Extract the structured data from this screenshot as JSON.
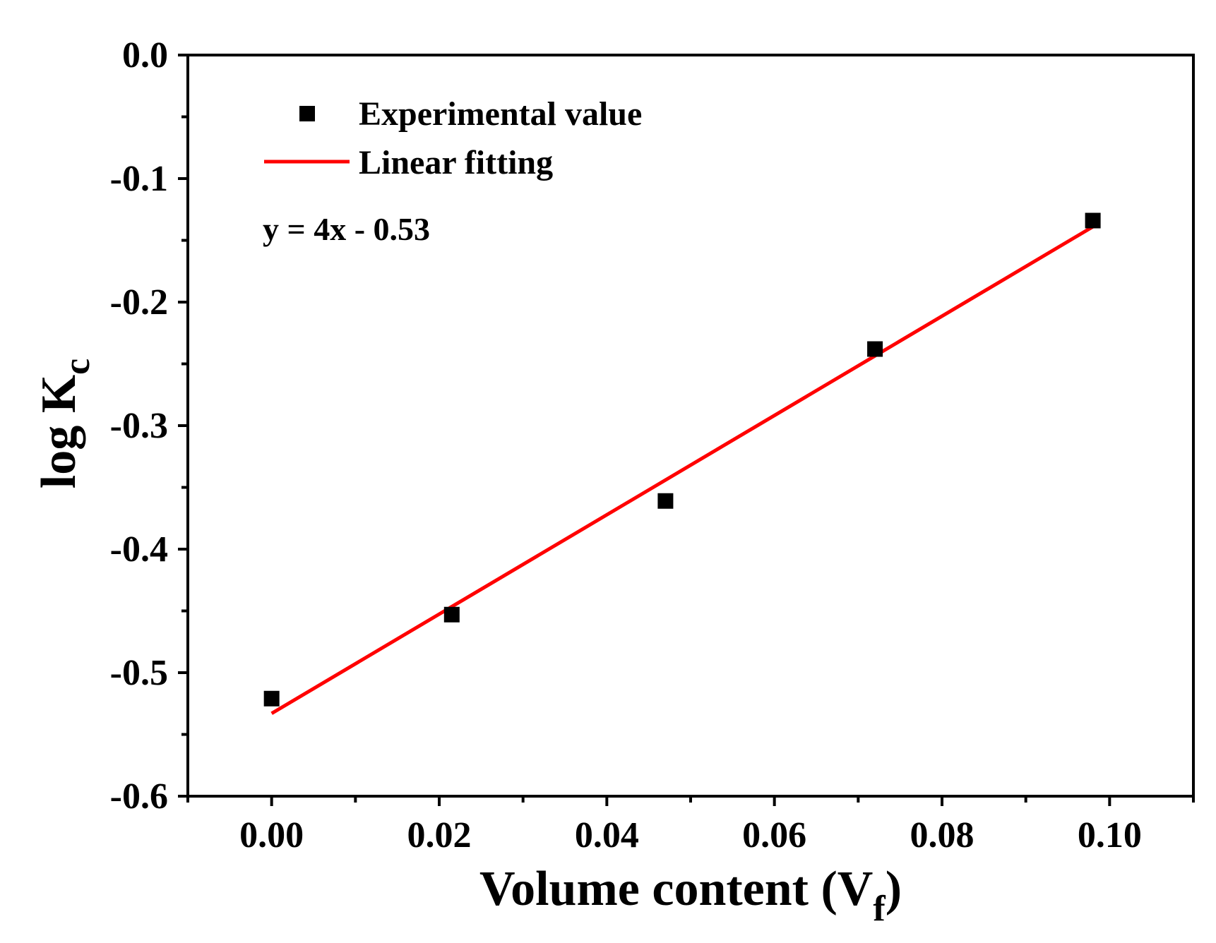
{
  "chart_data": {
    "type": "scatter",
    "title": "",
    "xlabel": {
      "main": "Volume content (V",
      "sub": "f",
      "close": ")"
    },
    "ylabel": {
      "main": "log K",
      "sub": "c"
    },
    "xlim": [
      -0.01,
      0.11
    ],
    "ylim": [
      -0.6,
      0.0
    ],
    "x_major_ticks": [
      0.0,
      0.02,
      0.04,
      0.06,
      0.08,
      0.1
    ],
    "x_tick_labels": [
      "0.00",
      "0.02",
      "0.04",
      "0.06",
      "0.08",
      "0.10"
    ],
    "x_minor_ticks": [
      -0.01,
      0.01,
      0.03,
      0.05,
      0.07,
      0.09,
      0.11
    ],
    "y_major_ticks": [
      0.0,
      -0.1,
      -0.2,
      -0.3,
      -0.4,
      -0.5,
      -0.6
    ],
    "y_tick_labels": [
      "0.0",
      "-0.1",
      "-0.2",
      "-0.3",
      "-0.4",
      "-0.5",
      "-0.6"
    ],
    "y_minor_ticks": [
      -0.05,
      -0.15,
      -0.25,
      -0.35,
      -0.45,
      -0.55
    ],
    "series": [
      {
        "name": "Experimental value",
        "kind": "scatter",
        "marker": "square",
        "color": "#000000",
        "x": [
          0.0,
          0.0215,
          0.047,
          0.072,
          0.098
        ],
        "y": [
          -0.521,
          -0.453,
          -0.361,
          -0.238,
          -0.134
        ]
      },
      {
        "name": "Linear fitting",
        "kind": "line",
        "color": "#ff0000",
        "x": [
          0.0,
          0.098
        ],
        "y": [
          -0.533,
          -0.139
        ]
      }
    ],
    "legend": {
      "placement": "top-left",
      "entries": [
        "Experimental value",
        "Linear fitting"
      ]
    },
    "annotation": "y = 4x - 0.53",
    "grid": false
  }
}
